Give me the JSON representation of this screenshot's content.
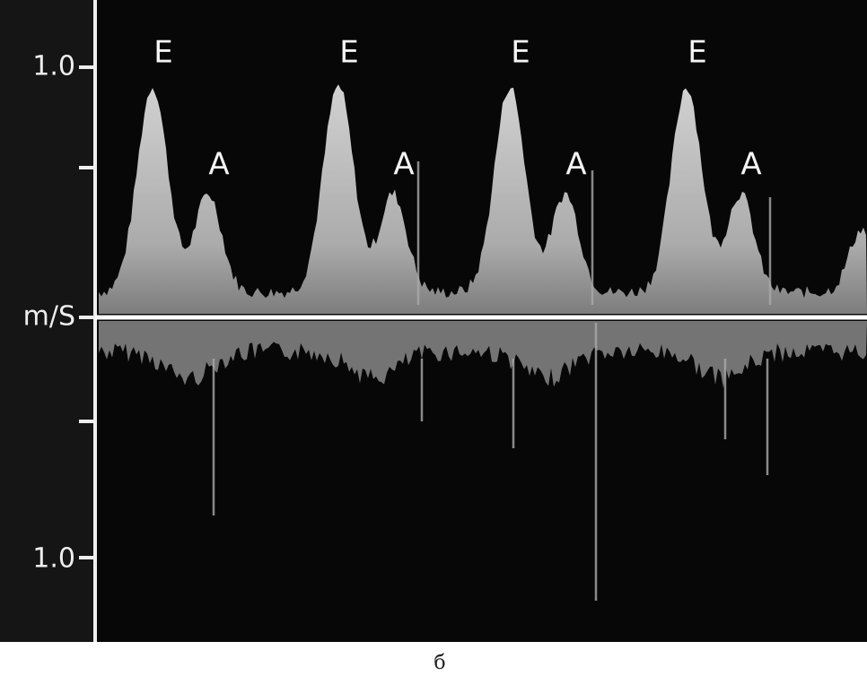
{
  "axis": {
    "top": "1.0",
    "middle": "m/S",
    "bottom": "1.0"
  },
  "cycles": [
    {
      "e": "E",
      "a": "A"
    },
    {
      "e": "E",
      "a": "A"
    },
    {
      "e": "E",
      "a": "A"
    },
    {
      "e": "E",
      "a": "A"
    }
  ],
  "caption": "б"
}
